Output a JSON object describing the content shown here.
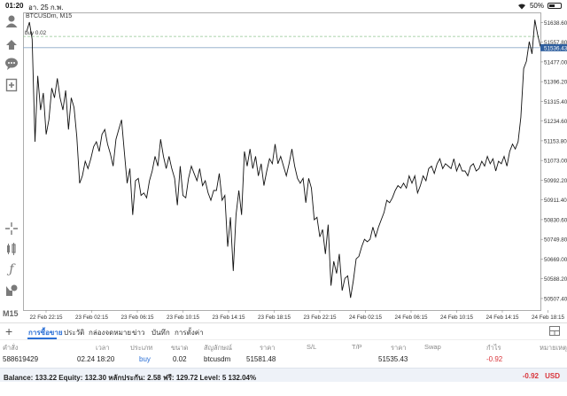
{
  "status_bar": {
    "time": "01:20",
    "date": "อา. 25 ก.พ.",
    "battery": "50%",
    "battery_level": 0.5
  },
  "chart": {
    "symbol": "BTCUSDm, M15",
    "order_line_label": "buy 0.02",
    "current_price": "51536.43",
    "colors": {
      "price_line": "#111111",
      "order_line": "#8fc48f",
      "bid_line": "#8aa8c8",
      "current_badge": "#2f5f9f",
      "grid": "#e6e6e6"
    }
  },
  "chart_data": {
    "type": "line",
    "title": "",
    "xlabel": "",
    "ylabel": "",
    "ylim": [
      50460,
      51680
    ],
    "y_ticks": [
      "51638.60",
      "51557.80",
      "51477.00",
      "51396.20",
      "51315.40",
      "51234.60",
      "51153.80",
      "51073.00",
      "50992.20",
      "50911.40",
      "50830.60",
      "50749.80",
      "50669.00",
      "50588.20",
      "50507.40"
    ],
    "y_tick_values": [
      51638.6,
      51557.8,
      51477.0,
      51396.2,
      51315.4,
      51234.6,
      51153.8,
      51073.0,
      50992.2,
      50911.4,
      50830.6,
      50749.8,
      50669.0,
      50588.2,
      50507.4
    ],
    "x_ticks": [
      "22 Feb 22:15",
      "23 Feb 02:15",
      "23 Feb 06:15",
      "23 Feb 10:15",
      "23 Feb 14:15",
      "23 Feb 18:15",
      "23 Feb 22:15",
      "24 Feb 02:15",
      "24 Feb 06:15",
      "24 Feb 10:15",
      "24 Feb 14:15",
      "24 Feb 18:15"
    ],
    "order_price": 51581.48,
    "bid_price": 51535.43,
    "series": [
      {
        "values": [
          51600,
          51640,
          51570,
          51150,
          51420,
          51280,
          51350,
          51180,
          51240,
          51370,
          51330,
          51410,
          51330,
          51280,
          51360,
          51200,
          51330,
          51290,
          51170,
          50980,
          51010,
          51070,
          51040,
          51080,
          51130,
          51150,
          51110,
          51180,
          51200,
          51140,
          51100,
          51050,
          51160,
          51200,
          51240,
          51110,
          50980,
          51040,
          50850,
          50990,
          51000,
          50930,
          50940,
          50920,
          50990,
          51030,
          51090,
          51050,
          51160,
          51090,
          51040,
          51090,
          51040,
          51000,
          50890,
          51050,
          50930,
          50920,
          51000,
          51050,
          51020,
          50990,
          51040,
          50970,
          50990,
          50940,
          50910,
          50950,
          50950,
          51020,
          50910,
          50930,
          50720,
          50840,
          50620,
          50850,
          50950,
          50850,
          51110,
          51050,
          51120,
          51040,
          51090,
          51010,
          51060,
          50970,
          51030,
          51080,
          51060,
          51140,
          51060,
          51090,
          51050,
          51010,
          51060,
          51120,
          51050,
          51000,
          50980,
          51000,
          50900,
          51000,
          50960,
          50830,
          50840,
          50760,
          50790,
          50690,
          50810,
          50560,
          50660,
          50610,
          50690,
          50540,
          50590,
          50600,
          50510,
          50580,
          50670,
          50680,
          50720,
          50750,
          50740,
          50750,
          50800,
          50760,
          50800,
          50830,
          50860,
          50910,
          50900,
          50920,
          50950,
          50970,
          50960,
          50980,
          50960,
          51010,
          50980,
          51010,
          50940,
          50970,
          51010,
          50990,
          51040,
          51050,
          51020,
          51060,
          51080,
          51040,
          51060,
          51050,
          51040,
          51080,
          51030,
          51060,
          51030,
          51030,
          51010,
          51050,
          51060,
          51030,
          51040,
          51070,
          51050,
          51090,
          51060,
          51080,
          51030,
          51070,
          51060,
          51090,
          51050,
          51110,
          51140,
          51120,
          51150,
          51250,
          51450,
          51480,
          51560,
          51510,
          51650,
          51590,
          51540
        ]
      }
    ]
  },
  "toolbar": {
    "timeframe": "M15",
    "icons": [
      "person-icon",
      "share-icon",
      "chat-icon",
      "add-file-icon",
      "crosshair-icon",
      "indicators-icon",
      "function-icon",
      "objects-icon"
    ]
  },
  "tabs": {
    "items": [
      "การซื้อขาย",
      "ประวัติ",
      "กล่องจดหมาย",
      "ข่าว",
      "บันทึก",
      "การตั้งค่า"
    ],
    "active": 0
  },
  "table": {
    "headers": [
      "คำสั่ง",
      "เวลา",
      "ประเภท",
      "ขนาด",
      "สัญลักษณ์",
      "ราคา",
      "S/L",
      "T/P",
      "ราคา",
      "Swap",
      "กำไร",
      "หมายเหตุ"
    ],
    "row": {
      "order": "588619429",
      "time": "02.24 18:20",
      "type": "buy",
      "size": "0.02",
      "symbol": "btcusdm",
      "price": "51581.48",
      "current_price": "51535.43",
      "profit": "-0.92"
    }
  },
  "footer": {
    "balance_text": "Balance: 133.22 Equity: 132.30 หลักประกัน: 2.58 ฟรี: 129.72 Level: 5 132.04%",
    "total": "-0.92",
    "currency": "USD"
  }
}
